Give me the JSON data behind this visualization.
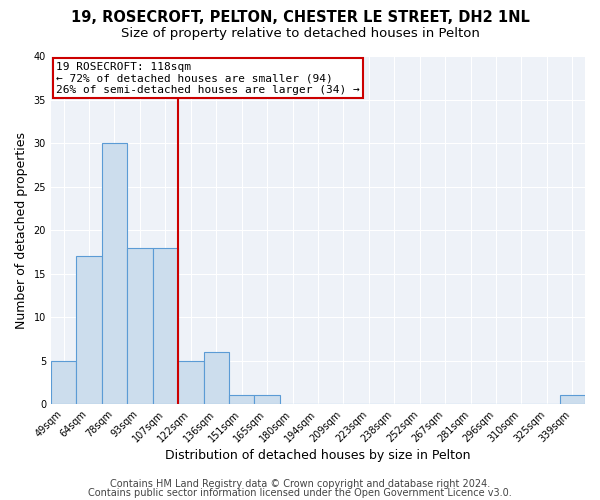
{
  "title": "19, ROSECROFT, PELTON, CHESTER LE STREET, DH2 1NL",
  "subtitle": "Size of property relative to detached houses in Pelton",
  "xlabel": "Distribution of detached houses by size in Pelton",
  "ylabel": "Number of detached properties",
  "bin_labels": [
    "49sqm",
    "64sqm",
    "78sqm",
    "93sqm",
    "107sqm",
    "122sqm",
    "136sqm",
    "151sqm",
    "165sqm",
    "180sqm",
    "194sqm",
    "209sqm",
    "223sqm",
    "238sqm",
    "252sqm",
    "267sqm",
    "281sqm",
    "296sqm",
    "310sqm",
    "325sqm",
    "339sqm"
  ],
  "bar_heights": [
    5,
    17,
    30,
    18,
    18,
    5,
    6,
    1,
    1,
    0,
    0,
    0,
    0,
    0,
    0,
    0,
    0,
    0,
    0,
    0,
    1
  ],
  "bar_color": "#ccdded",
  "bar_edge_color": "#5b9bd5",
  "vline_index": 5,
  "vline_color": "#cc0000",
  "annotation_title": "19 ROSECROFT: 118sqm",
  "annotation_line1": "← 72% of detached houses are smaller (94)",
  "annotation_line2": "26% of semi-detached houses are larger (34) →",
  "annotation_box_facecolor": "#ffffff",
  "annotation_box_edgecolor": "#cc0000",
  "ylim": [
    0,
    40
  ],
  "yticks": [
    0,
    5,
    10,
    15,
    20,
    25,
    30,
    35,
    40
  ],
  "footer1": "Contains HM Land Registry data © Crown copyright and database right 2024.",
  "footer2": "Contains public sector information licensed under the Open Government Licence v3.0.",
  "bg_color": "#ffffff",
  "plot_bg_color": "#eef2f8",
  "grid_color": "#ffffff",
  "title_fontsize": 10.5,
  "subtitle_fontsize": 9.5,
  "axis_label_fontsize": 9,
  "tick_fontsize": 7,
  "annotation_fontsize": 8,
  "footer_fontsize": 7
}
